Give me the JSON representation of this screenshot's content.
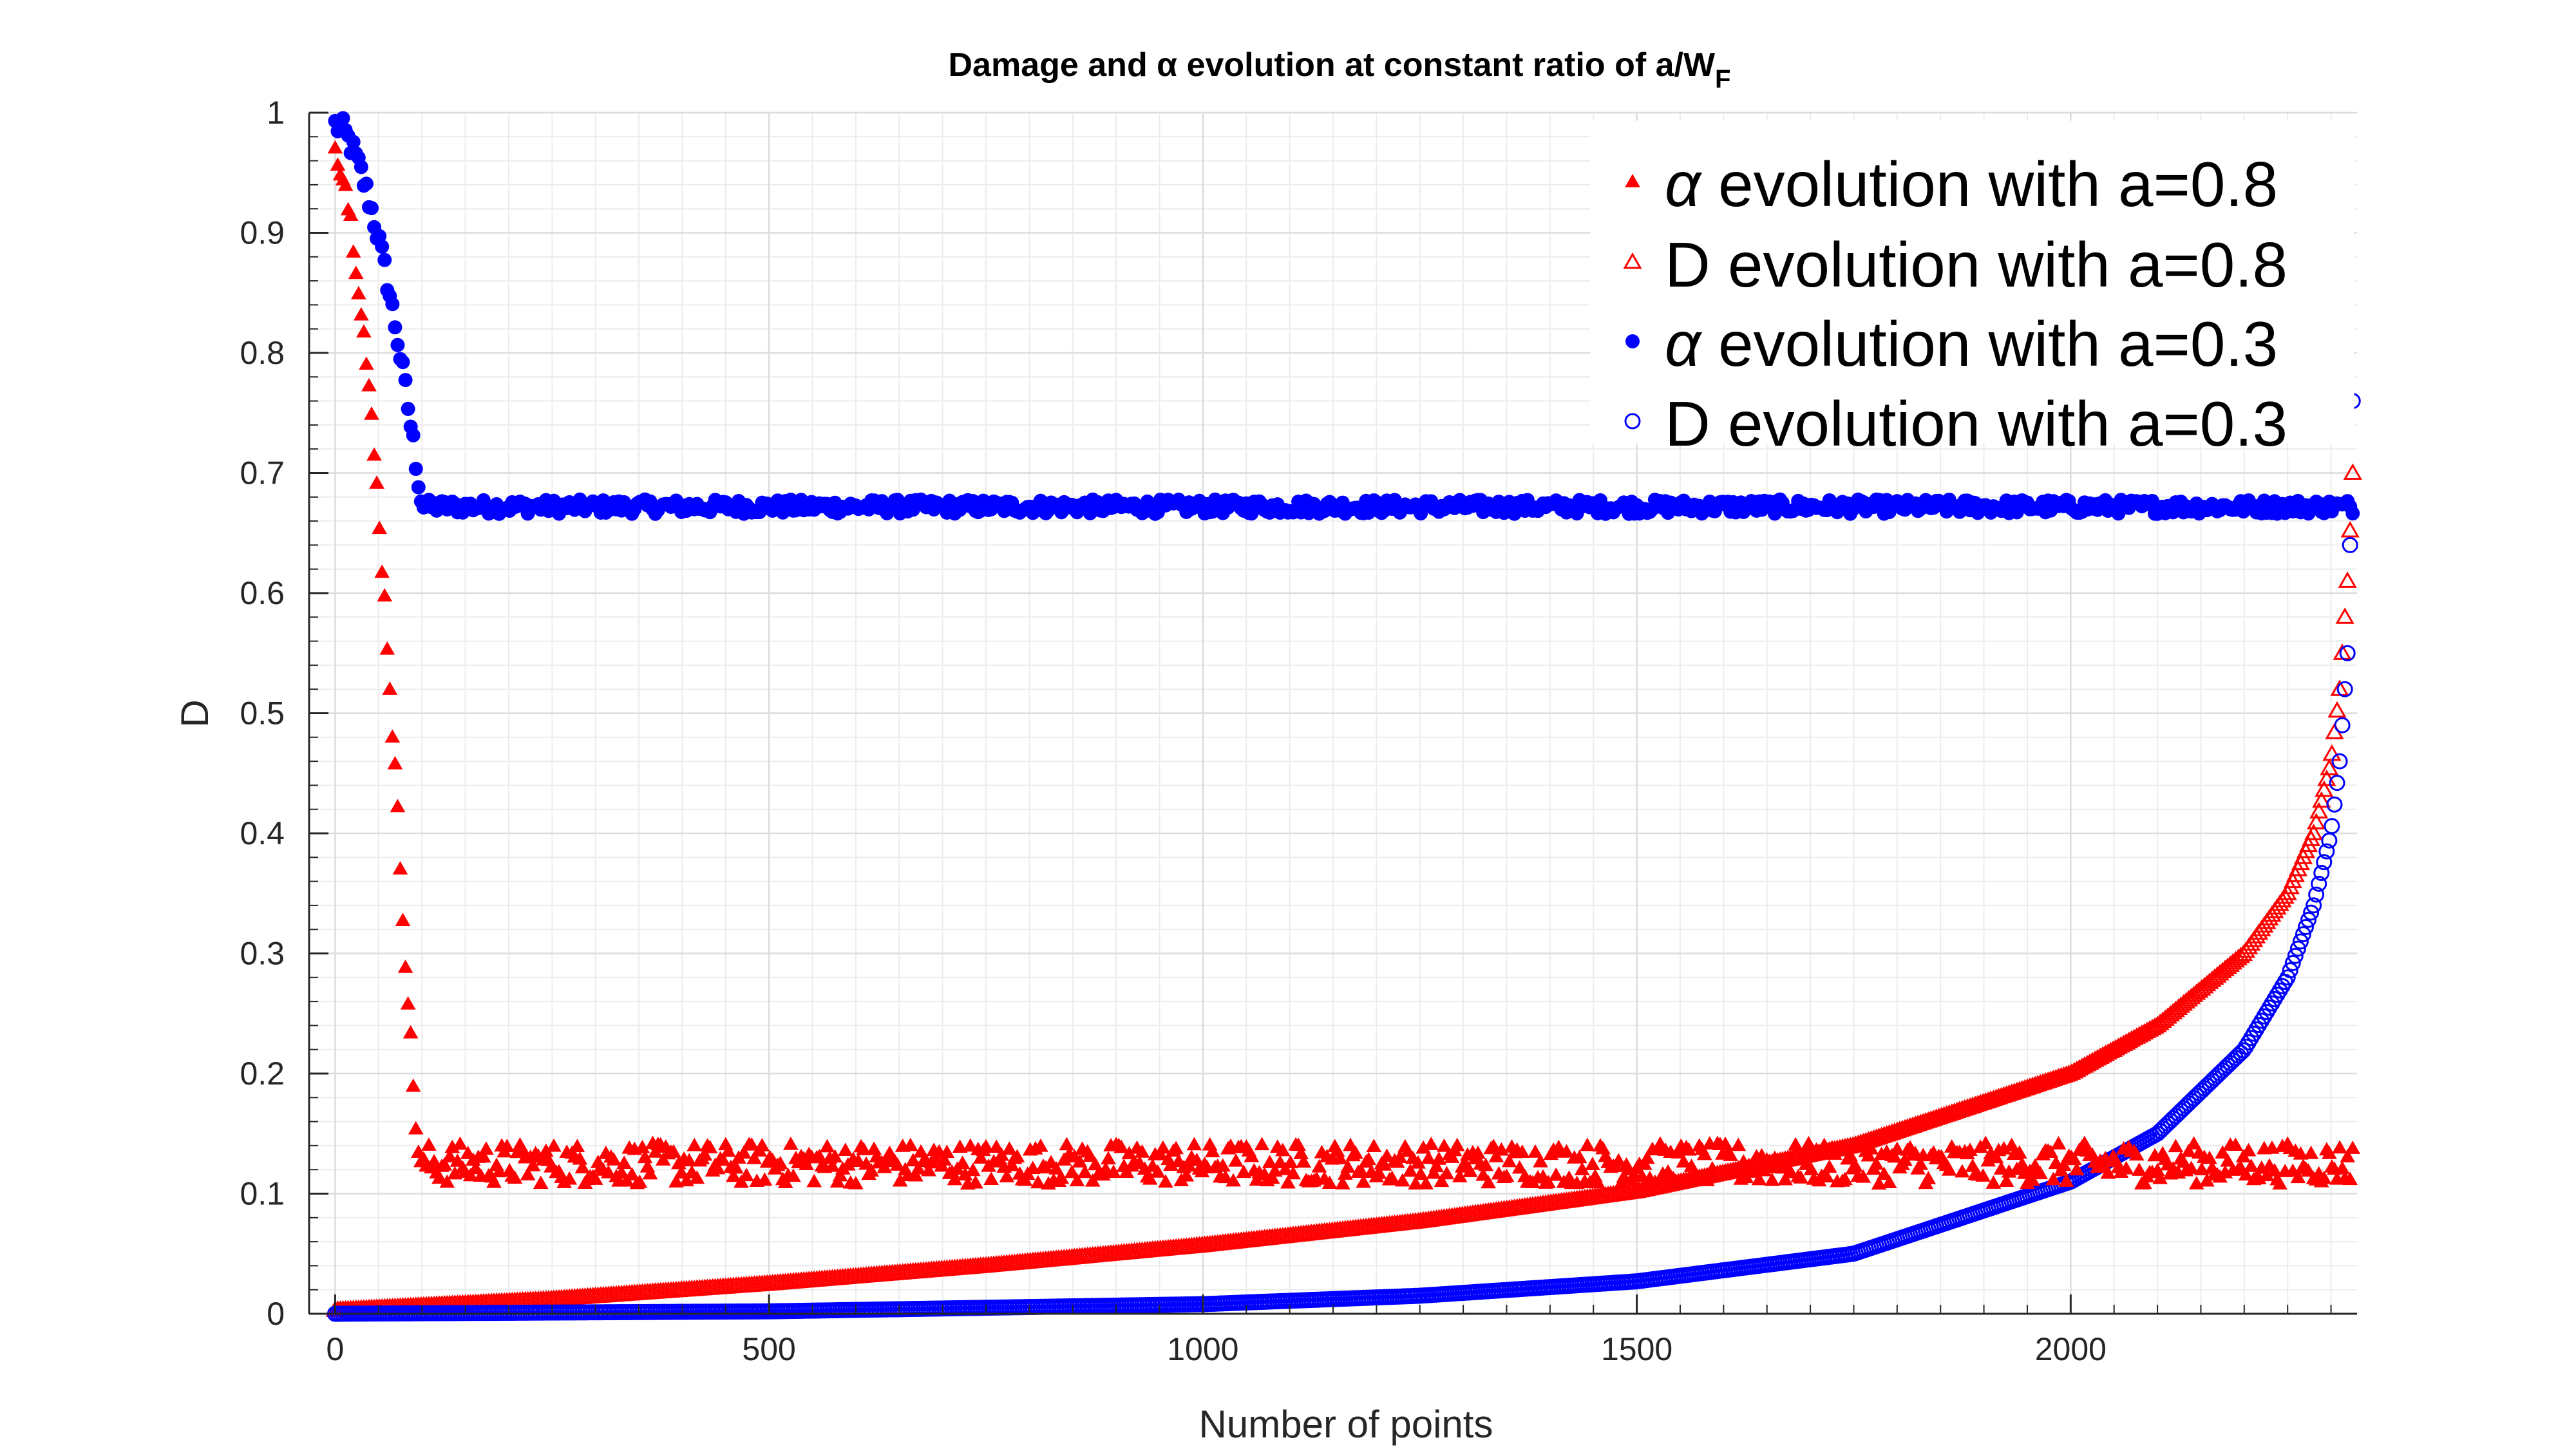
{
  "chart_data": {
    "type": "scatter",
    "title": "Damage and α evolution at constant ratio of a/W",
    "title_subscript": "F",
    "xlabel": "Number of points",
    "ylabel": "D",
    "xlim": [
      -30,
      2330
    ],
    "ylim": [
      0,
      1
    ],
    "x_ticks": [
      0,
      500,
      1000,
      1500,
      2000
    ],
    "y_ticks": [
      0,
      0.1,
      0.2,
      0.3,
      0.4,
      0.5,
      0.6,
      0.7,
      0.8,
      0.9,
      1
    ],
    "x_tick_labels": [
      "0",
      "500",
      "1000",
      "1500",
      "2000"
    ],
    "y_tick_labels": [
      "0",
      "0.1",
      "0.2",
      "0.3",
      "0.4",
      "0.5",
      "0.6",
      "0.7",
      "0.8",
      "0.9",
      "1"
    ],
    "grid": true,
    "minor_grid": true,
    "legend_position": "top-right",
    "series": [
      {
        "name": "α evolution with a=0.8",
        "legend_prefix": "α",
        "legend_rest": " evolution with a=0.8",
        "marker": "triangle-filled",
        "color": "#ff0000",
        "x": [
          0,
          10,
          20,
          30,
          40,
          50,
          60,
          70,
          80,
          90,
          95,
          100,
          105,
          2330
        ],
        "y": [
          0.97,
          0.95,
          0.9,
          0.84,
          0.76,
          0.67,
          0.56,
          0.44,
          0.31,
          0.19,
          0.14,
          0.12,
          0.125,
          0.125
        ],
        "steady_value": 0.125,
        "steady_spread": 0.017
      },
      {
        "name": "D evolution with a=0.8",
        "legend_prefix": "D",
        "legend_rest": " evolution with a=0.8",
        "marker": "triangle-open",
        "color": "#ff0000",
        "x": [
          0,
          250,
          500,
          750,
          1000,
          1250,
          1500,
          1750,
          2000,
          2100,
          2200,
          2250,
          2280,
          2300,
          2310,
          2320,
          2325
        ],
        "y": [
          0.003,
          0.012,
          0.025,
          0.04,
          0.057,
          0.077,
          0.102,
          0.14,
          0.2,
          0.24,
          0.3,
          0.35,
          0.4,
          0.46,
          0.52,
          0.62,
          0.7
        ]
      },
      {
        "name": "α evolution with a=0.3",
        "legend_prefix": "α",
        "legend_rest": " evolution with a=0.3",
        "marker": "circle-filled",
        "color": "#0000ff",
        "x": [
          0,
          10,
          20,
          30,
          40,
          50,
          60,
          70,
          80,
          90,
          100,
          105,
          2330
        ],
        "y": [
          0.99,
          0.985,
          0.97,
          0.95,
          0.925,
          0.895,
          0.86,
          0.82,
          0.775,
          0.725,
          0.675,
          0.672,
          0.672
        ],
        "steady_value": 0.672,
        "steady_spread": 0.006
      },
      {
        "name": "D evolution with a=0.3",
        "legend_prefix": "D",
        "legend_rest": " evolution with a=0.3",
        "marker": "circle-open",
        "color": "#0000ff",
        "x": [
          0,
          500,
          1000,
          1250,
          1500,
          1750,
          2000,
          2100,
          2200,
          2250,
          2280,
          2300,
          2310,
          2320,
          2325
        ],
        "y": [
          0.0,
          0.002,
          0.008,
          0.015,
          0.027,
          0.05,
          0.11,
          0.15,
          0.22,
          0.28,
          0.34,
          0.4,
          0.46,
          0.56,
          0.76
        ]
      }
    ]
  }
}
